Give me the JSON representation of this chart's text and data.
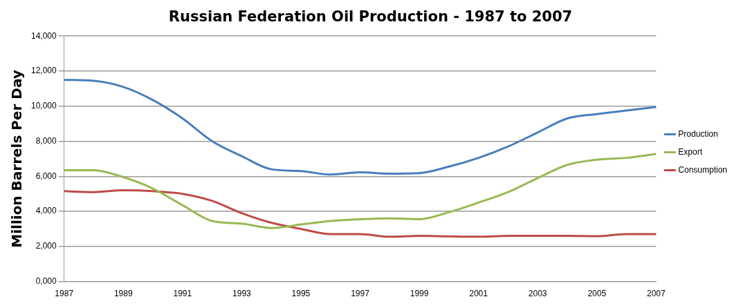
{
  "chart_data": {
    "type": "line",
    "title": "Russian Federation Oil Production - 1987 to 2007",
    "ylabel": "Million Barrels Per Day",
    "categories": [
      "1987",
      null,
      "1989",
      null,
      "1991",
      null,
      "1993",
      null,
      "1995",
      null,
      "1997",
      null,
      "1999",
      null,
      "2001",
      null,
      "2003",
      null,
      "2005",
      null,
      "2007"
    ],
    "series": [
      {
        "name": "Production",
        "color": "#4a7ebb",
        "values": [
          11500,
          11450,
          11100,
          10350,
          9300,
          8000,
          7150,
          6400,
          6300,
          6100,
          6230,
          6150,
          6180,
          6550,
          7050,
          7700,
          8500,
          9300,
          9550,
          9750,
          9950
        ]
      },
      {
        "name": "Export",
        "color": "#98b954",
        "values": [
          6350,
          6350,
          5950,
          5300,
          4350,
          3450,
          3300,
          3050,
          3250,
          3450,
          3550,
          3600,
          3550,
          3950,
          4500,
          5100,
          5900,
          6650,
          6950,
          7050,
          7270
        ]
      },
      {
        "name": "Consumption",
        "color": "#be4b48",
        "values": [
          5150,
          5100,
          5200,
          5150,
          5000,
          4600,
          3900,
          3350,
          3000,
          2700,
          2700,
          2550,
          2600,
          2570,
          2550,
          2600,
          2600,
          2600,
          2580,
          2700,
          2700
        ]
      }
    ],
    "ylim": [
      0,
      14000
    ],
    "yticks": [
      {
        "value": 0,
        "label": "0,000"
      },
      {
        "value": 2000,
        "label": "2,000"
      },
      {
        "value": 4000,
        "label": "4,000"
      },
      {
        "value": 6000,
        "label": "6,000"
      },
      {
        "value": 8000,
        "label": "8,000"
      },
      {
        "value": 10000,
        "label": "10,000"
      },
      {
        "value": 12000,
        "label": "12,000"
      },
      {
        "value": 14000,
        "label": "14,000"
      }
    ],
    "grid": "y",
    "legend": "right",
    "marker": "none",
    "line_style": "solid"
  }
}
